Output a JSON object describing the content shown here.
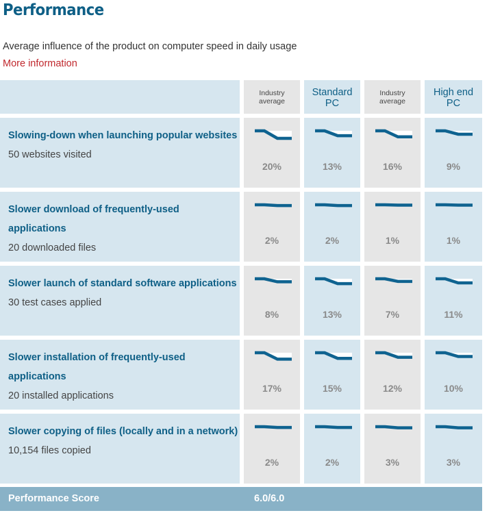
{
  "title": "Performance",
  "subtitle": "Average influence of the product on computer speed in daily usage",
  "more_info": "More information",
  "columns": [
    {
      "label": "Industry average",
      "style": "small",
      "bg": "gray"
    },
    {
      "label": "Standard PC",
      "style": "big",
      "bg": "blue"
    },
    {
      "label": "Industry average",
      "style": "small",
      "bg": "gray"
    },
    {
      "label": "High end PC",
      "style": "big",
      "bg": "blue"
    }
  ],
  "rows": [
    {
      "name": "Slowing-down when launching popular websites",
      "count": "50 websites visited",
      "values": [
        "20%",
        "13%",
        "16%",
        "9%"
      ],
      "impact": [
        20,
        13,
        16,
        9
      ]
    },
    {
      "name": "Slower download of frequently-used applications",
      "count": "20 downloaded files",
      "values": [
        "2%",
        "2%",
        "1%",
        "1%"
      ],
      "impact": [
        2,
        2,
        1,
        1
      ]
    },
    {
      "name": "Slower launch of standard software applications",
      "count": "30 test cases applied",
      "values": [
        "8%",
        "13%",
        "7%",
        "11%"
      ],
      "impact": [
        8,
        13,
        7,
        11
      ]
    },
    {
      "name": "Slower installation of frequently-used applications",
      "count": "20 installed applications",
      "values": [
        "17%",
        "15%",
        "12%",
        "10%"
      ],
      "impact": [
        17,
        15,
        12,
        10
      ]
    },
    {
      "name": "Slower copying of files (locally and in a network)",
      "count": "10,154 files copied",
      "values": [
        "2%",
        "2%",
        "3%",
        "3%"
      ],
      "impact": [
        2,
        2,
        3,
        3
      ]
    }
  ],
  "score_label": "Performance Score",
  "score_value": "6.0/6.0",
  "colors": {
    "accent": "#0e5f86",
    "link": "#c0282d",
    "line": "#0f6390",
    "score_bg": "#89b2c7"
  },
  "icons": {
    "speed_graph": "speed-drop-graph-icon"
  }
}
